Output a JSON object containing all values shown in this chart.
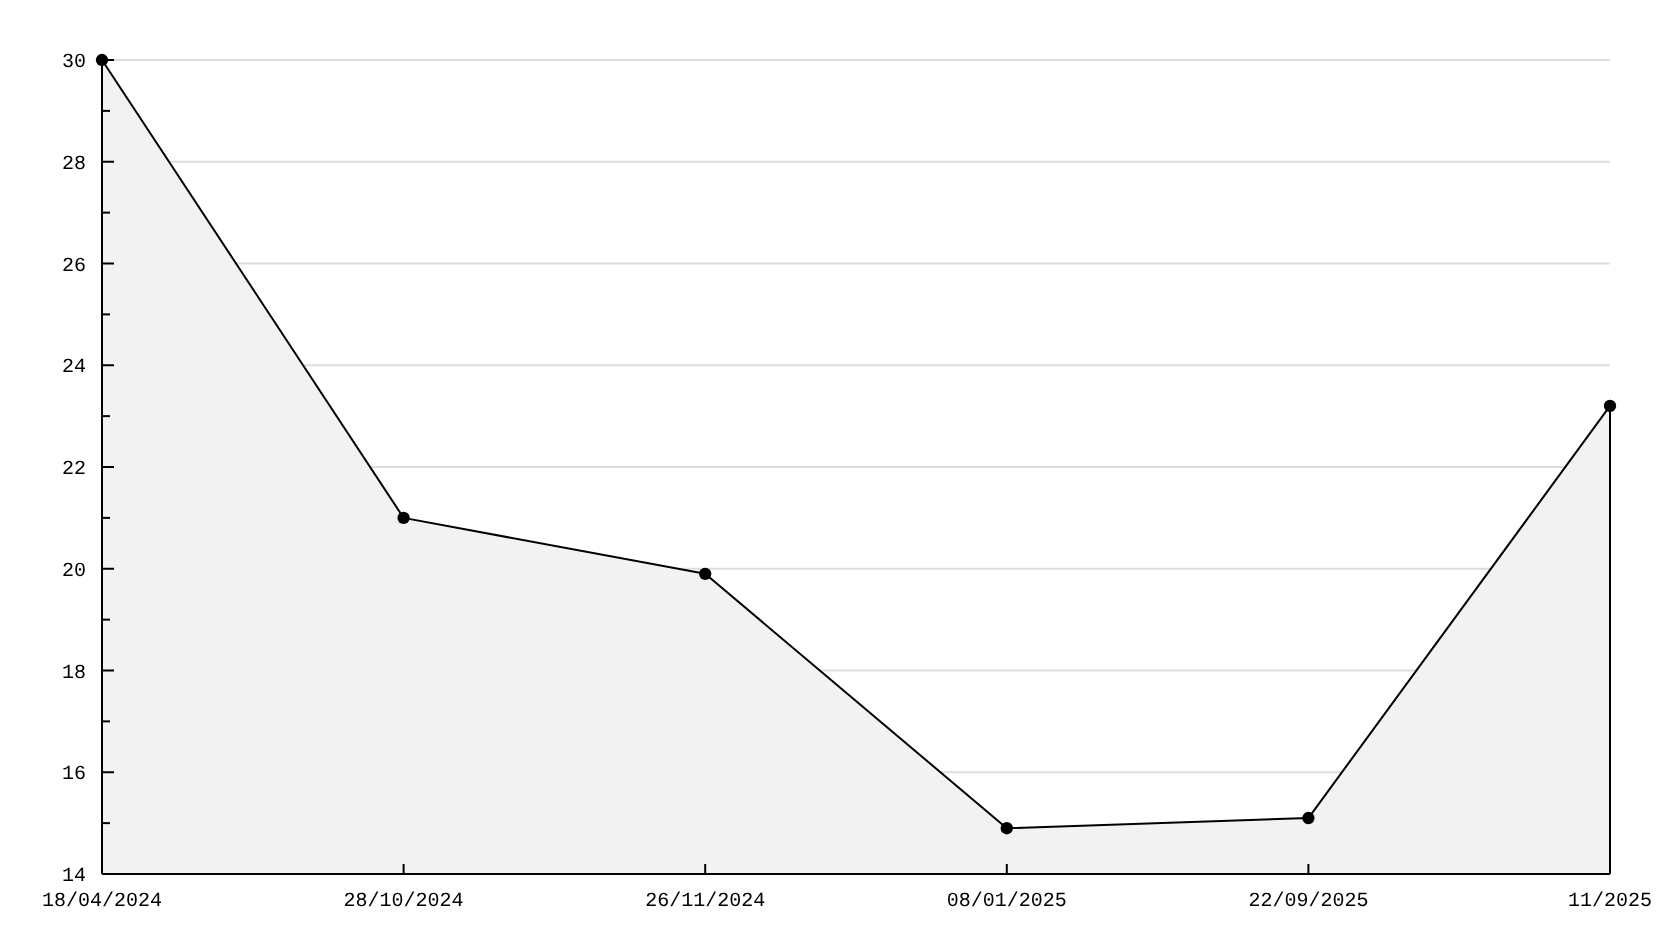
{
  "chart_data": {
    "type": "area",
    "categories": [
      "18/04/2024",
      "28/10/2024",
      "26/11/2024",
      "08/01/2025",
      "22/09/2025",
      "11/2025"
    ],
    "series": [
      {
        "color": "#f2f2f2",
        "values": [
          30,
          21,
          19.9,
          14.9,
          15.1,
          23.2
        ]
      }
    ],
    "ylim": [
      14,
      30
    ],
    "yticks": [
      14,
      {
        "value": 15,
        "label": null
      },
      16,
      {
        "value": 17,
        "label": null
      },
      18,
      {
        "value": 19,
        "label": null
      },
      20,
      {
        "value": 21,
        "label": null
      },
      22,
      {
        "value": 23,
        "label": null
      },
      24,
      {
        "value": 25,
        "label": null
      },
      26,
      {
        "value": 27,
        "label": null
      },
      28,
      {
        "value": 29,
        "label": null
      },
      30
    ],
    "grid": "y",
    "marker": "circle",
    "line_style": "solid"
  }
}
